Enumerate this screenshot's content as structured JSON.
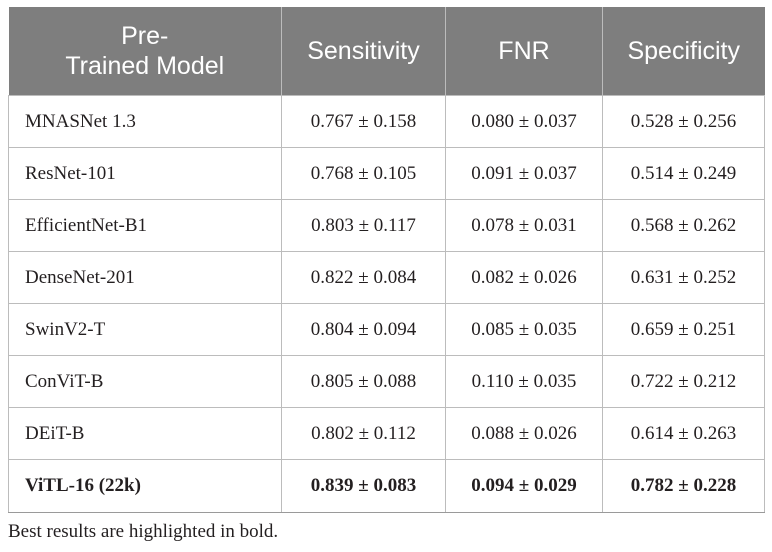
{
  "table": {
    "headers": {
      "model_line1": "Pre-",
      "model_line2": "Trained Model",
      "sensitivity": "Sensitivity",
      "fnr": "FNR",
      "specificity": "Specificity"
    },
    "rows": [
      {
        "model": "MNASNet 1.3",
        "sensitivity": "0.767 ± 0.158",
        "fnr": "0.080 ± 0.037",
        "specificity": "0.528 ± 0.256"
      },
      {
        "model": "ResNet-101",
        "sensitivity": "0.768 ± 0.105",
        "fnr": "0.091 ± 0.037",
        "specificity": "0.514 ± 0.249"
      },
      {
        "model": "EfficientNet-B1",
        "sensitivity": "0.803 ± 0.117",
        "fnr": "0.078 ± 0.031",
        "specificity": "0.568 ± 0.262"
      },
      {
        "model": "DenseNet-201",
        "sensitivity": "0.822 ± 0.084",
        "fnr": "0.082 ± 0.026",
        "specificity": "0.631 ± 0.252"
      },
      {
        "model": "SwinV2-T",
        "sensitivity": "0.804 ± 0.094",
        "fnr": "0.085 ± 0.035",
        "specificity": "0.659 ± 0.251"
      },
      {
        "model": "ConViT-B",
        "sensitivity": "0.805 ± 0.088",
        "fnr": "0.110 ± 0.035",
        "specificity": "0.722 ± 0.212"
      },
      {
        "model": "DEiT-B",
        "sensitivity": "0.802 ± 0.112",
        "fnr": "0.088 ± 0.026",
        "specificity": "0.614 ± 0.263"
      },
      {
        "model": "ViTL-16 (22k)",
        "sensitivity": "0.839 ± 0.083",
        "fnr": "0.094 ± 0.029",
        "specificity": "0.782 ± 0.228"
      }
    ]
  },
  "footnote": "Best results are highlighted in bold.",
  "colors": {
    "header_background": "#7e7e7e",
    "header_text": "#ffffff",
    "grid_lines": "#bcbcbc",
    "body_text": "#231f20"
  }
}
